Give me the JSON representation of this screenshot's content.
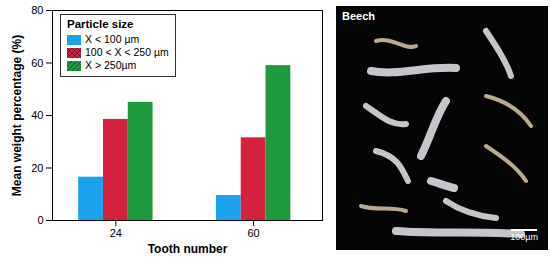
{
  "chart_data": {
    "type": "bar",
    "xlabel": "Tooth number",
    "ylabel": "Mean weight percentage (%)",
    "categories": [
      "24",
      "60"
    ],
    "series": [
      {
        "name": "X < 100 µm",
        "color": "#1aa3ec",
        "values": [
          16.5,
          9.5
        ]
      },
      {
        "name": "100 < X < 250 µm",
        "color": "#d4213d",
        "values": [
          38.5,
          31.5
        ]
      },
      {
        "name": "X > 250µm",
        "color": "#1e9a3c",
        "values": [
          45,
          59
        ]
      }
    ],
    "ylim": [
      0,
      80
    ],
    "yticks": [
      0,
      20,
      40,
      60,
      80
    ],
    "grid": false,
    "legend": "top-left",
    "legend_title": "Particle size"
  },
  "image_panel": {
    "label": "Beech",
    "scale_bar": "100µm"
  }
}
